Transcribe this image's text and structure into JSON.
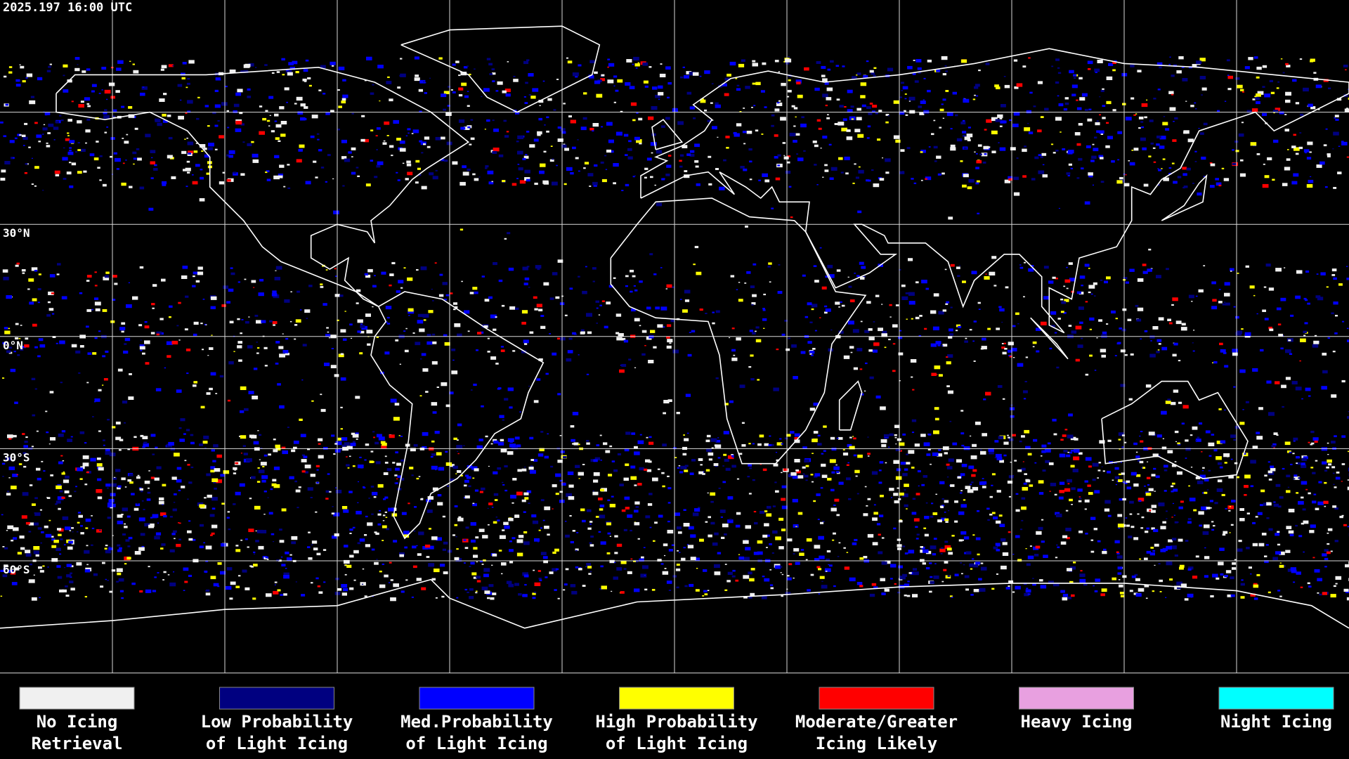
{
  "timestamp": "2025.197 16:00 UTC",
  "latitude_labels": [
    "30°N",
    "0°N",
    "30°S",
    "60°S"
  ],
  "legend": [
    {
      "lines": [
        "No Icing",
        "Retrieval"
      ],
      "color": "#f0f0f0"
    },
    {
      "lines": [
        "Low Probability",
        "of Light Icing"
      ],
      "color": "#000080"
    },
    {
      "lines": [
        "Med.Probability",
        "of Light Icing"
      ],
      "color": "#0000ff"
    },
    {
      "lines": [
        "High Probability",
        "of Light Icing"
      ],
      "color": "#ffff00"
    },
    {
      "lines": [
        "Moderate/Greater",
        "Icing Likely"
      ],
      "color": "#ff0000"
    },
    {
      "lines": [
        "Heavy Icing"
      ],
      "color": "#e8a0e0"
    },
    {
      "lines": [
        "Night Icing"
      ],
      "color": "#00ffff"
    }
  ]
}
